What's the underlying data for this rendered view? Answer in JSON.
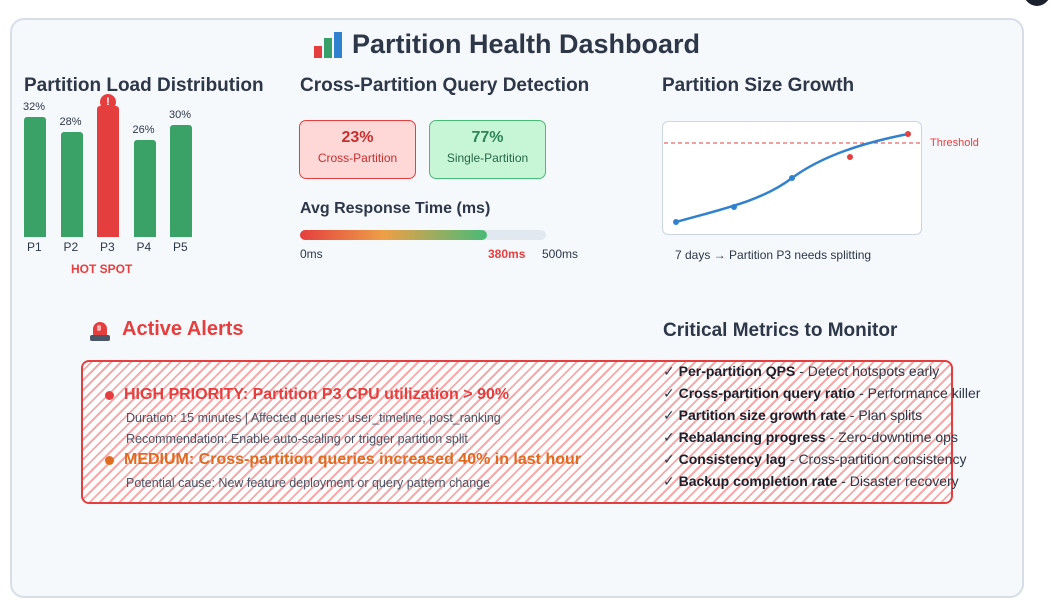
{
  "dashboard": {
    "title": "Partition Health Dashboard",
    "title_icon": "bar-chart-icon"
  },
  "load": {
    "title": "Partition Load Distribution",
    "hot_label": "HOT SPOT",
    "hot_marker": "!",
    "partitions": [
      {
        "name": "P1",
        "pct": "32%",
        "value": 32,
        "hot": false
      },
      {
        "name": "P2",
        "pct": "28%",
        "value": 28,
        "hot": false
      },
      {
        "name": "P3",
        "pct": "",
        "value": 35,
        "hot": true
      },
      {
        "name": "P4",
        "pct": "26%",
        "value": 26,
        "hot": false
      },
      {
        "name": "P5",
        "pct": "30%",
        "value": 30,
        "hot": false
      }
    ]
  },
  "query": {
    "title": "Cross-Partition Query Detection",
    "cross": {
      "pct": "23%",
      "label": "Cross-Partition"
    },
    "single": {
      "pct": "77%",
      "label": "Single-Partition"
    },
    "response": {
      "title": "Avg Response Time (ms)",
      "min_label": "0ms",
      "value_label": "380ms",
      "max_label": "500ms",
      "value": 380,
      "max": 500
    }
  },
  "growth": {
    "title": "Partition Size Growth",
    "threshold_label": "Threshold",
    "caption": "7 days → Partition P3 needs splitting",
    "colors": {
      "line": "#3182ce",
      "threshold": "#e53e3e",
      "alert_point": "#e53e3e"
    }
  },
  "alerts": {
    "title": "Active Alerts",
    "icon": "siren-icon",
    "items": [
      {
        "headline": "HIGH PRIORITY: Partition P3 CPU utilization > 90%",
        "color": "#e53e3e",
        "details": [
          "Duration: 15 minutes | Affected queries: user_timeline, post_ranking",
          "Recommendation: Enable auto-scaling or trigger partition split"
        ]
      },
      {
        "headline": "MEDIUM: Cross-partition queries increased 40% in last hour",
        "color": "#dd6b20",
        "details": [
          "Potential cause: New feature deployment or query pattern change"
        ]
      }
    ]
  },
  "metrics": {
    "title": "Critical Metrics to Monitor",
    "check": "✓",
    "items": [
      {
        "name": "Per-partition QPS",
        "desc": " - Detect hotspots early"
      },
      {
        "name": "Cross-partition query ratio",
        "desc": " - Performance killer"
      },
      {
        "name": "Partition size growth rate",
        "desc": " - Plan splits"
      },
      {
        "name": "Rebalancing progress",
        "desc": " - Zero-downtime ops"
      },
      {
        "name": "Consistency lag",
        "desc": " - Cross-partition consistency"
      },
      {
        "name": "Backup completion rate",
        "desc": " - Disaster recovery"
      }
    ]
  }
}
